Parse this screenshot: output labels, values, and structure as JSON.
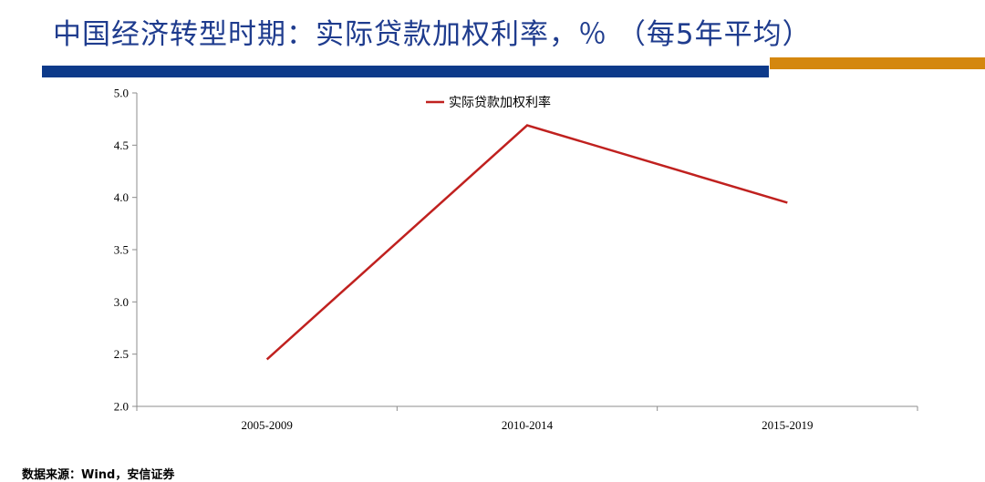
{
  "header": {
    "title": "中国经济转型时期：实际贷款加权利率，％ （每5年平均）"
  },
  "colors": {
    "title": "#1f3c8e",
    "bar_blue": "#0d3a8a",
    "bar_gold": "#d4870f",
    "series_line": "#c0211f"
  },
  "chart_data": {
    "type": "line",
    "title": "",
    "xlabel": "",
    "ylabel": "",
    "categories": [
      "2005-2009",
      "2010-2014",
      "2015-2019"
    ],
    "series": [
      {
        "name": "实际贷款加权利率",
        "values": [
          2.45,
          4.69,
          3.95
        ],
        "color": "#c0211f"
      }
    ],
    "ylim": [
      2.0,
      5.0
    ],
    "yticks": [
      "2.0",
      "2.5",
      "3.0",
      "3.5",
      "4.0",
      "4.5",
      "5.0"
    ],
    "grid": false,
    "legend_position": "top-center"
  },
  "footer": {
    "source": "数据来源：Wind，安信证券"
  }
}
